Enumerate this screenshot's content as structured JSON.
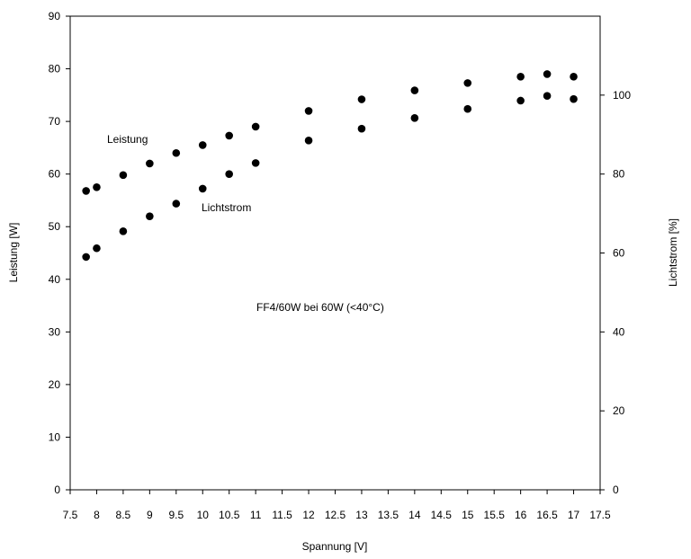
{
  "chart_data": {
    "type": "scatter",
    "title": "",
    "xlabel": "Spannung [V]",
    "ylabel": "Leistung [W]",
    "y2label": "Lichtstrom [%]",
    "xlim": [
      7.5,
      17.5
    ],
    "ylim": [
      0,
      90
    ],
    "y2lim": [
      0,
      120
    ],
    "x_ticks": [
      "7.5",
      "8",
      "8.5",
      "9",
      "9.5",
      "10",
      "10.5",
      "11",
      "11.5",
      "12",
      "12.5",
      "13",
      "13.5",
      "14",
      "14.5",
      "15",
      "15.5",
      "16",
      "16.5",
      "17",
      "17.5"
    ],
    "y_ticks": [
      "0",
      "10",
      "20",
      "30",
      "40",
      "50",
      "60",
      "70",
      "80",
      "90"
    ],
    "y2_ticks": [
      "0",
      "20",
      "40",
      "60",
      "80",
      "100"
    ],
    "grid": false,
    "annotations": {
      "leistung": "Leistung",
      "lichtstrom": "Lichtstrom",
      "note": "FF4/60W bei 60W (<40°C)"
    },
    "series": [
      {
        "name": "Leistung",
        "axis": "left",
        "x": [
          7.8,
          8.0,
          8.5,
          9.0,
          9.5,
          10.0,
          10.5,
          11.0,
          12.0,
          13.0,
          14.0,
          15.0,
          16.0,
          16.5,
          17.0
        ],
        "y": [
          56.8,
          57.5,
          59.8,
          62.0,
          64.0,
          65.5,
          67.3,
          69.0,
          72.0,
          74.2,
          75.9,
          77.3,
          78.5,
          79.0,
          78.5
        ]
      },
      {
        "name": "Lichtstrom",
        "axis": "right",
        "x": [
          7.8,
          8.0,
          8.5,
          9.0,
          9.5,
          10.0,
          10.5,
          11.0,
          12.0,
          13.0,
          14.0,
          15.0,
          16.0,
          16.5,
          17.0
        ],
        "y": [
          59.0,
          61.2,
          65.5,
          69.3,
          72.5,
          76.3,
          80.0,
          82.8,
          88.5,
          91.5,
          94.2,
          96.5,
          98.6,
          99.8,
          99.0
        ]
      }
    ]
  }
}
